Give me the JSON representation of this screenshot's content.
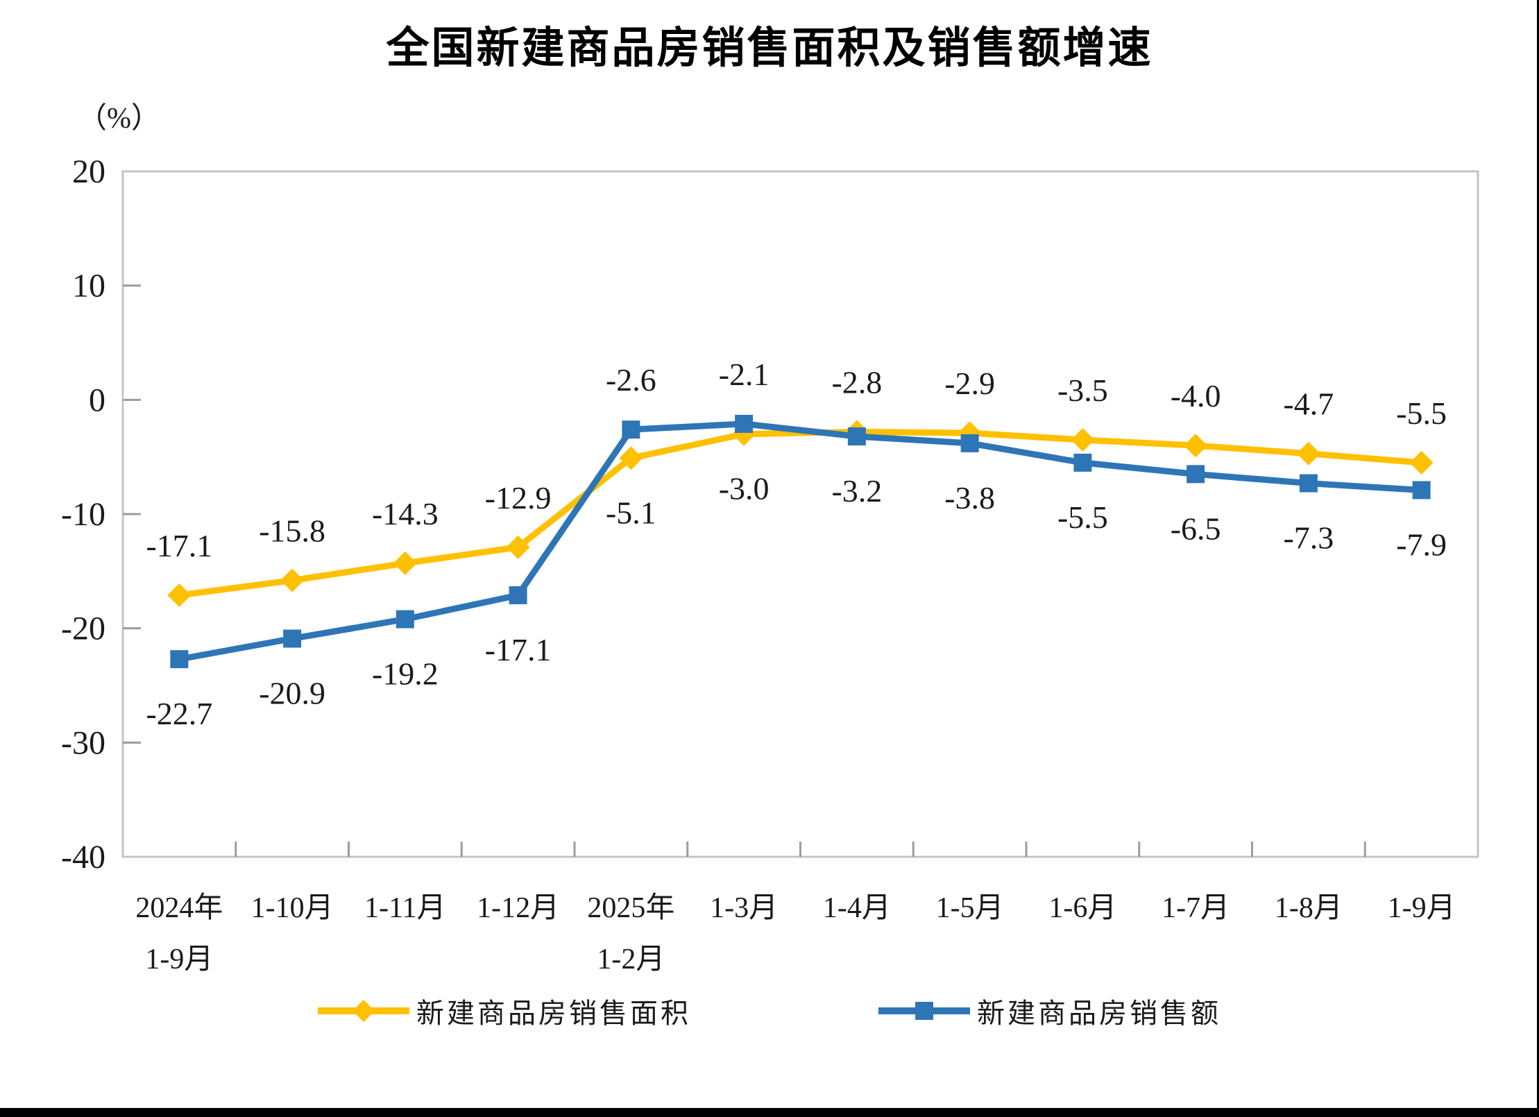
{
  "chart_data": {
    "type": "line",
    "title": "全国新建商品房销售面积及销售额增速",
    "ylabel": "（%）",
    "xlabel": "",
    "ylim": [
      -40,
      20
    ],
    "yticks": [
      20,
      10,
      0,
      -10,
      -20,
      -30,
      -40
    ],
    "grid": false,
    "legend_position": "bottom",
    "categories": [
      [
        "2024年",
        "1-9月"
      ],
      [
        "1-10月"
      ],
      [
        "1-11月"
      ],
      [
        "1-12月"
      ],
      [
        "2025年",
        "1-2月"
      ],
      [
        "1-3月"
      ],
      [
        "1-4月"
      ],
      [
        "1-5月"
      ],
      [
        "1-6月"
      ],
      [
        "1-7月"
      ],
      [
        "1-8月"
      ],
      [
        "1-9月"
      ]
    ],
    "series": [
      {
        "name": "新建商品房销售面积",
        "color": "#FFC000",
        "marker": "diamond",
        "values": [
          -17.1,
          -15.8,
          -14.3,
          -12.9,
          -5.1,
          -3.0,
          -2.8,
          -2.9,
          -3.5,
          -4.0,
          -4.7,
          -5.5
        ],
        "label_side": [
          "above",
          "above",
          "above",
          "above",
          "below",
          "below",
          "above",
          "above",
          "above",
          "above",
          "above",
          "above"
        ]
      },
      {
        "name": "新建商品房销售额",
        "color": "#2E75B6",
        "marker": "square",
        "values": [
          -22.7,
          -20.9,
          -19.2,
          -17.1,
          -2.6,
          -2.1,
          -3.2,
          -3.8,
          -5.5,
          -6.5,
          -7.3,
          -7.9
        ],
        "label_side": [
          "below",
          "below",
          "below",
          "below",
          "above",
          "above",
          "below",
          "below",
          "below",
          "below",
          "below",
          "below"
        ]
      }
    ],
    "colors": {
      "border": "#C4C4C4",
      "tick": "#9C9C9C",
      "text": "#1A1A1A"
    }
  }
}
